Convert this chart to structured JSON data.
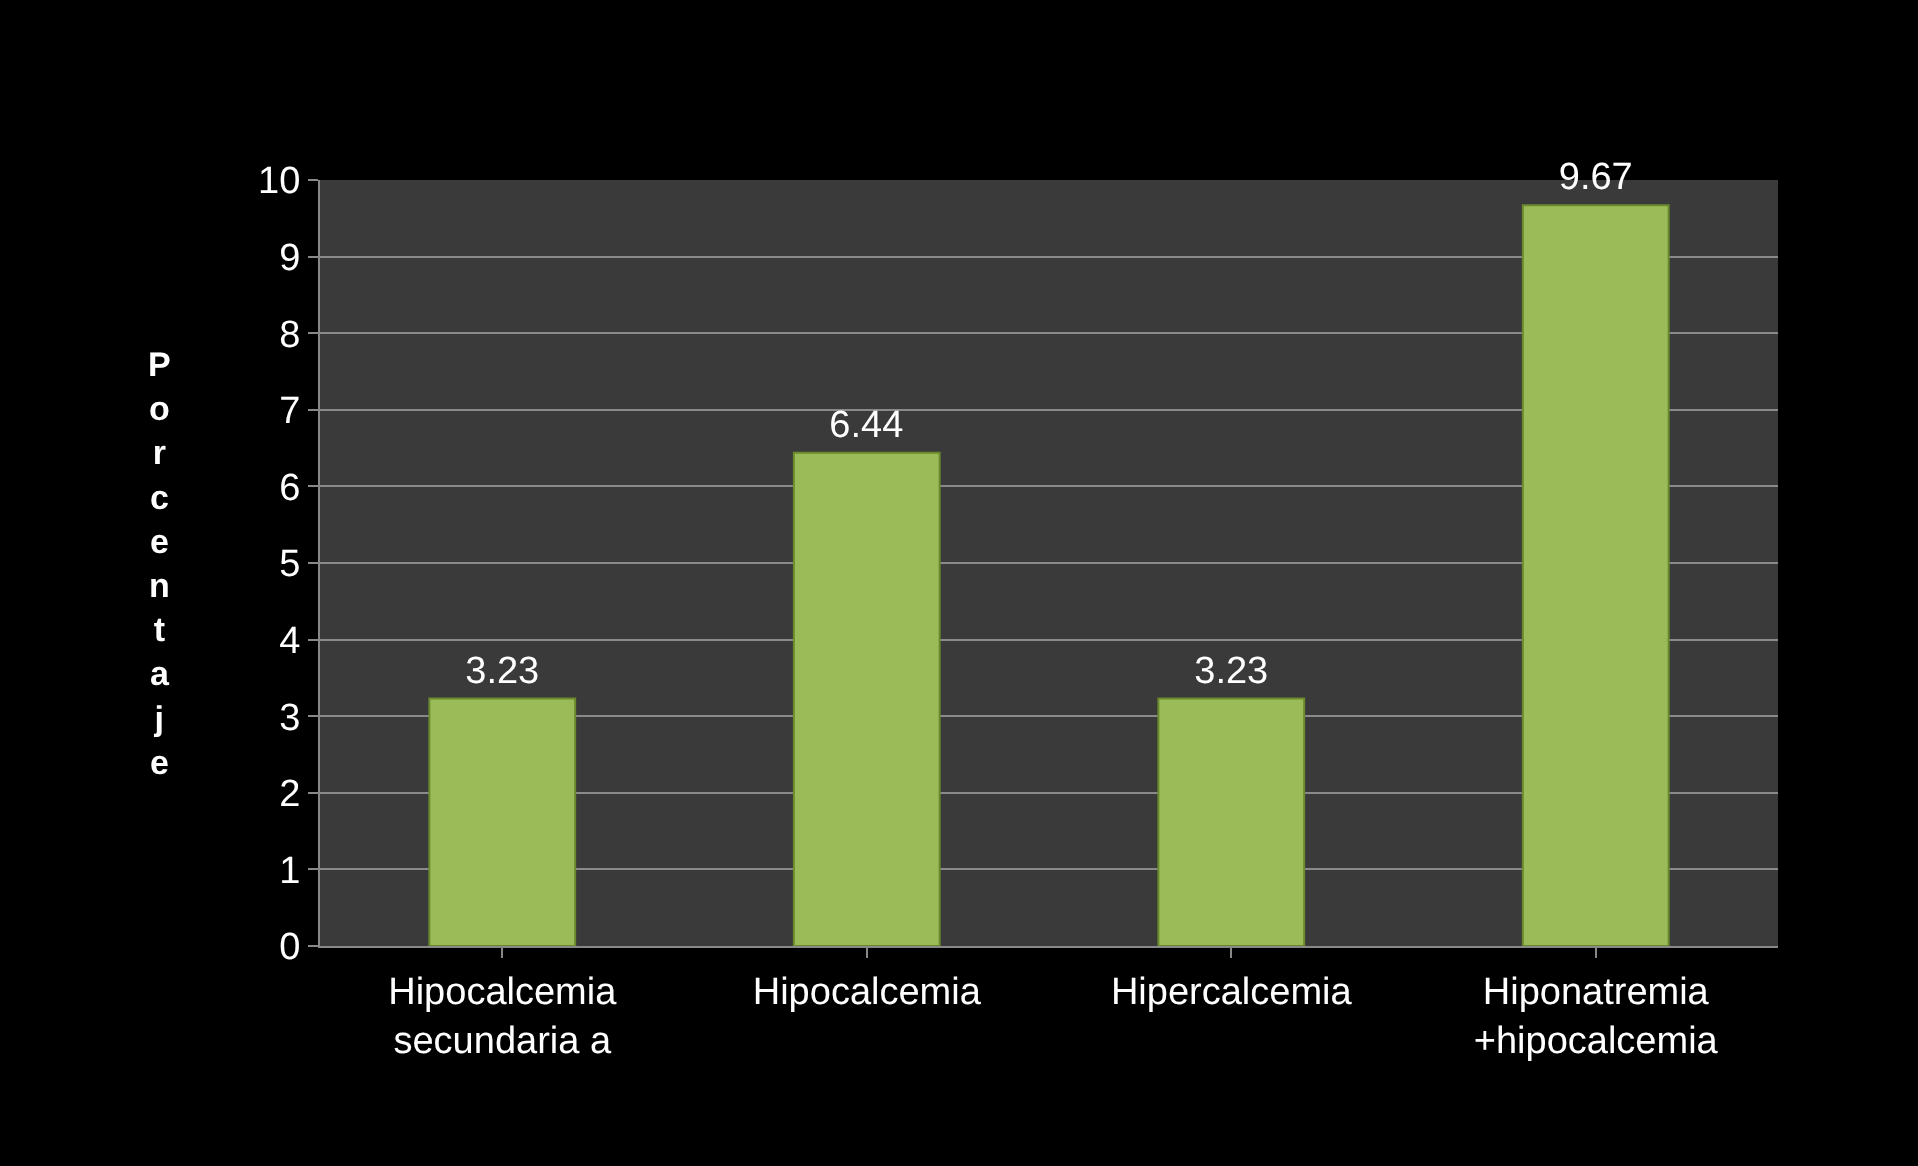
{
  "chart_data": {
    "type": "bar",
    "ylabel": "Porcentaje",
    "categories": [
      "Hipocalcemia\nsecundaria a",
      "Hipocalcemia",
      "Hipercalcemia",
      "Hiponatremia\n+hipocalcemia"
    ],
    "values": [
      3.23,
      6.44,
      3.23,
      9.67
    ],
    "color": "#9bbb59",
    "ylim": [
      0,
      10
    ],
    "yticks": [
      0,
      1,
      2,
      3,
      4,
      5,
      6,
      7,
      8,
      9,
      10
    ],
    "grid": "y",
    "data_labels": true
  }
}
